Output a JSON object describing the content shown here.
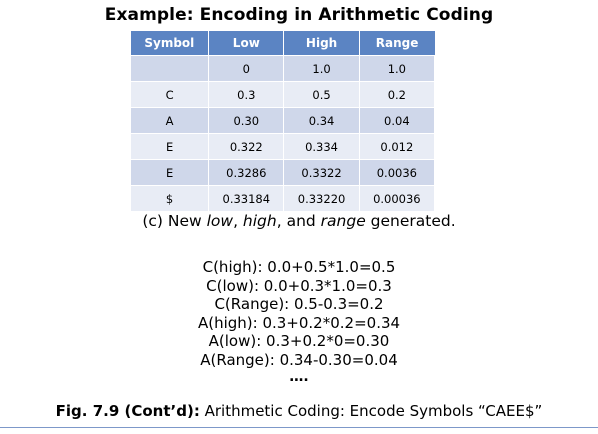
{
  "title": "Example: Encoding in Arithmetic Coding",
  "table": {
    "headers": [
      "Symbol",
      "Low",
      "High",
      "Range"
    ],
    "rows": [
      [
        "",
        "0",
        "1.0",
        "1.0"
      ],
      [
        "C",
        "0.3",
        "0.5",
        "0.2"
      ],
      [
        "A",
        "0.30",
        "0.34",
        "0.04"
      ],
      [
        "E",
        "0.322",
        "0.334",
        "0.012"
      ],
      [
        "E",
        "0.3286",
        "0.3322",
        "0.0036"
      ],
      [
        "$",
        "0.33184",
        "0.33220",
        "0.00036"
      ]
    ]
  },
  "caption": {
    "prefix": "(c) New ",
    "low": "low",
    "sep1": ", ",
    "high": "high",
    "sep2": ", and ",
    "range": "range",
    "suffix": " generated."
  },
  "calculations": [
    "C(high): 0.0+0.5*1.0=0.5",
    "C(low): 0.0+0.3*1.0=0.3",
    "C(Range): 0.5-0.3=0.2",
    "A(high): 0.3+0.2*0.2=0.34",
    "A(low): 0.3+0.2*0=0.30",
    "A(Range): 0.34-0.30=0.04"
  ],
  "ellipsis": "….",
  "figure": {
    "label": "Fig. 7.9 (Cont’d):",
    "text": " Arithmetic Coding: Encode Symbols “CAEE$”"
  }
}
